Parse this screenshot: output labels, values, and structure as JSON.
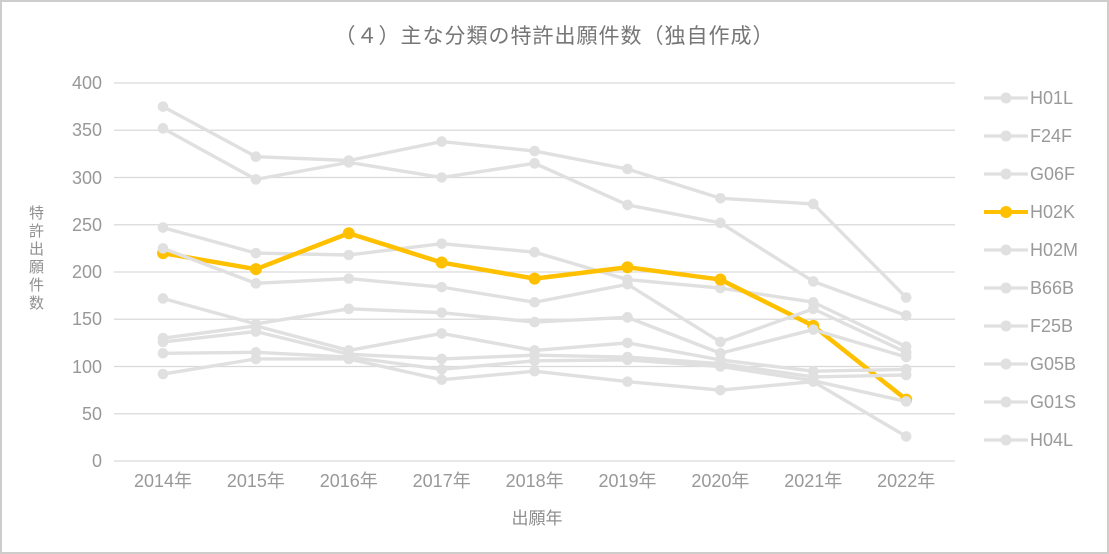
{
  "chart_data": {
    "type": "line",
    "title": "（４）主な分類の特許出願件数（独自作成）",
    "xlabel": "出願年",
    "ylabel": "特許出願件数",
    "categories": [
      "2014年",
      "2015年",
      "2016年",
      "2017年",
      "2018年",
      "2019年",
      "2020年",
      "2021年",
      "2022年"
    ],
    "ylim": [
      0,
      400
    ],
    "yticks": [
      400,
      350,
      300,
      250,
      200,
      150,
      100,
      50,
      0
    ],
    "grid": true,
    "legend_position": "right",
    "colors": {
      "highlight": "#FFC000",
      "muted": "#e0e0e0",
      "grid": "#d9d9d9",
      "tick_text": "#989898",
      "title_text": "#767676"
    },
    "series": [
      {
        "name": "H01L",
        "role": "muted",
        "values": [
          375,
          322,
          318,
          338,
          328,
          309,
          278,
          272,
          173
        ]
      },
      {
        "name": "F24F",
        "role": "muted",
        "values": [
          352,
          298,
          316,
          300,
          315,
          271,
          252,
          190,
          154
        ]
      },
      {
        "name": "G06F",
        "role": "muted",
        "values": [
          247,
          220,
          218,
          230,
          221,
          192,
          183,
          168,
          121
        ]
      },
      {
        "name": "H02K",
        "role": "highlight",
        "values": [
          220,
          203,
          241,
          210,
          193,
          205,
          192,
          143,
          65
        ]
      },
      {
        "name": "H02M",
        "role": "muted",
        "values": [
          225,
          188,
          193,
          184,
          168,
          187,
          126,
          161,
          115
        ]
      },
      {
        "name": "B66B",
        "role": "muted",
        "values": [
          172,
          145,
          161,
          157,
          147,
          152,
          114,
          139,
          110
        ]
      },
      {
        "name": "F25B",
        "role": "muted",
        "values": [
          130,
          143,
          117,
          135,
          117,
          125,
          107,
          95,
          97
        ]
      },
      {
        "name": "G05B",
        "role": "muted",
        "values": [
          126,
          137,
          113,
          108,
          112,
          110,
          103,
          89,
          91
        ]
      },
      {
        "name": "G01S",
        "role": "muted",
        "values": [
          114,
          115,
          110,
          97,
          106,
          107,
          100,
          85,
          63
        ]
      },
      {
        "name": "H04L",
        "role": "muted",
        "values": [
          92,
          108,
          108,
          86,
          95,
          84,
          75,
          84,
          26
        ]
      }
    ]
  }
}
